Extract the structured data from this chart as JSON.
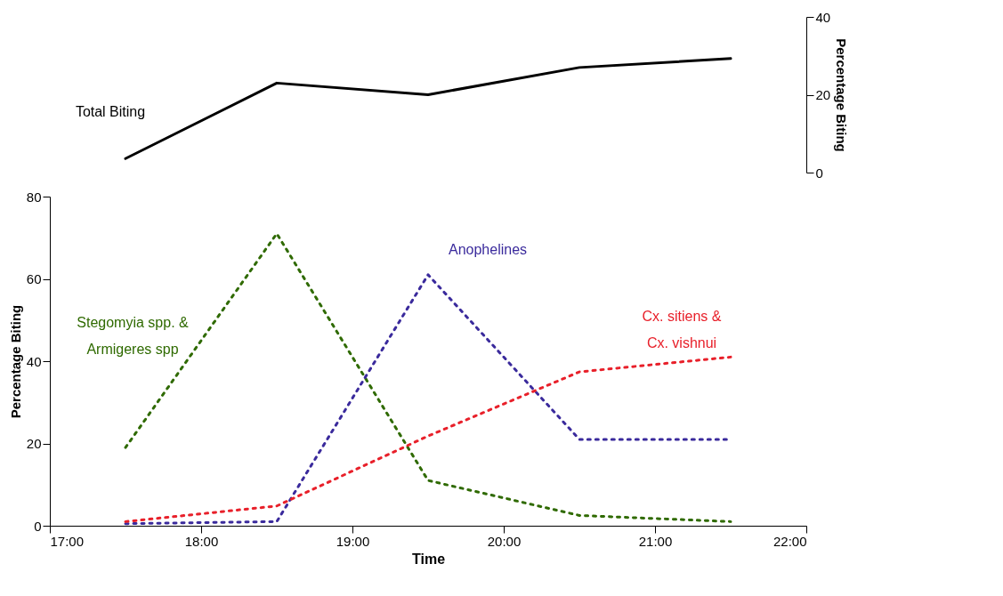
{
  "chart_data": [
    {
      "type": "line",
      "x": [
        17.5,
        18.5,
        19.5,
        20.5,
        21.5
      ],
      "xlim": [
        17,
        22
      ],
      "ylim": [
        0,
        40
      ],
      "yticks": [
        0,
        20,
        40
      ],
      "ylabel": "Percentage Biting",
      "tick_labels": "y",
      "grid": false,
      "line_style": "solid",
      "marker": "none",
      "series": [
        {
          "name": "Total Biting",
          "color": "#000000",
          "values": [
            3.6,
            23,
            20,
            27,
            29.3
          ]
        }
      ]
    },
    {
      "type": "line",
      "x": [
        17.5,
        18.5,
        19.5,
        20.5,
        21.5
      ],
      "xlim": [
        17,
        22
      ],
      "xticks": [
        {
          "value": 17,
          "label": "17:00"
        },
        {
          "value": 18,
          "label": "18:00"
        },
        {
          "value": 19,
          "label": "19:00"
        },
        {
          "value": 20,
          "label": "20:00"
        },
        {
          "value": 21,
          "label": "21:00"
        },
        {
          "value": 22,
          "label": "22:00"
        }
      ],
      "ylim": [
        0,
        80
      ],
      "yticks": [
        0,
        20,
        40,
        60,
        80
      ],
      "xlabel": "Time",
      "ylabel": "Percentage Biting",
      "grid": false,
      "line_style": "dashed",
      "marker": "none",
      "series": [
        {
          "name": "Stegomyia spp. & Armigeres spp",
          "color": "#2f6a00",
          "values": [
            19,
            71,
            11,
            2.5,
            1
          ]
        },
        {
          "name": "Anophelines",
          "color": "#3a2a9c",
          "values": [
            0.5,
            1,
            61,
            21,
            21
          ]
        },
        {
          "name": "Cx. sitiens & Cx. vishnui",
          "color": "#e8202a",
          "values": [
            1,
            4.8,
            21.8,
            37.4,
            41
          ]
        }
      ]
    }
  ]
}
